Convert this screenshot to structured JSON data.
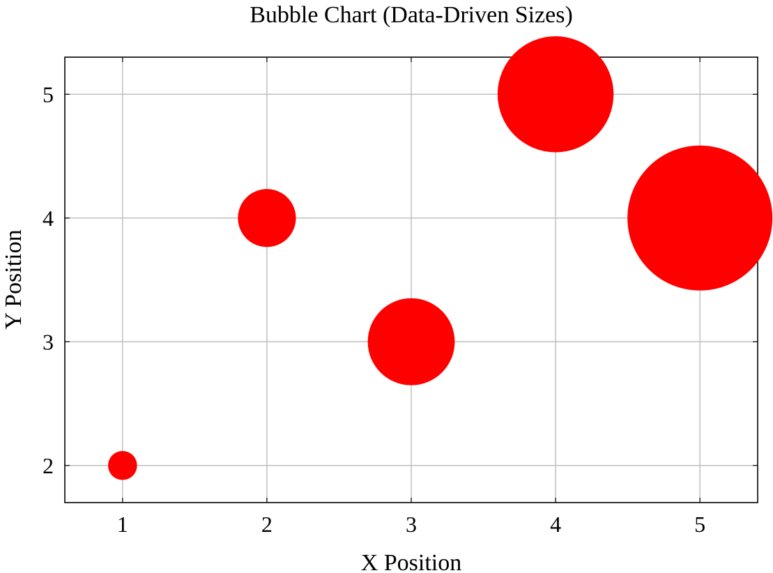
{
  "chart_data": {
    "type": "scatter",
    "subtype": "bubble",
    "title": "Bubble Chart (Data-Driven Sizes)",
    "xlabel": "X Position",
    "ylabel": "Y Position",
    "xlim": [
      0.6,
      5.4
    ],
    "ylim": [
      1.7,
      5.3
    ],
    "xticks": [
      1,
      2,
      3,
      4,
      5
    ],
    "yticks": [
      2,
      3,
      4,
      5
    ],
    "grid": true,
    "marker_color": "#ff0000",
    "points": [
      {
        "x": 1,
        "y": 2,
        "size": 1
      },
      {
        "x": 2,
        "y": 4,
        "size": 2
      },
      {
        "x": 3,
        "y": 3,
        "size": 3
      },
      {
        "x": 4,
        "y": 5,
        "size": 4
      },
      {
        "x": 5,
        "y": 4,
        "size": 5
      }
    ]
  }
}
